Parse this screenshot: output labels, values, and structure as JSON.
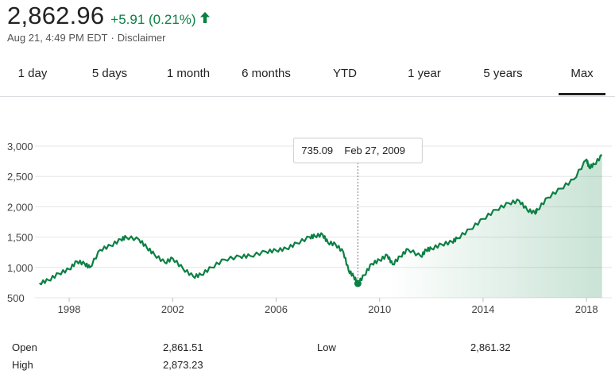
{
  "quote": {
    "price": "2,862.96",
    "change": "+5.91 (0.21%)",
    "arrow_icon": "arrow-up-icon",
    "timestamp": "Aug 21, 4:49 PM EDT",
    "separator": "·",
    "disclaimer": "Disclaimer",
    "accent_color": "#0b8043"
  },
  "tabs": [
    {
      "label": "1 day"
    },
    {
      "label": "5 days"
    },
    {
      "label": "1 month"
    },
    {
      "label": "6 months"
    },
    {
      "label": "YTD"
    },
    {
      "label": "1 year"
    },
    {
      "label": "5 years"
    },
    {
      "label": "Max",
      "active": true
    }
  ],
  "chart_data": {
    "type": "area",
    "x_ticks": [
      "1998",
      "2002",
      "2006",
      "2010",
      "2014",
      "2018"
    ],
    "y_ticks": [
      "3,000",
      "2,500",
      "2,000",
      "1,500",
      "1,000",
      "500"
    ],
    "ylim": [
      500,
      3000
    ],
    "xlim": [
      1996.8,
      2018.67
    ],
    "line_color": "#0b8043",
    "series": [
      {
        "x": [
          1996.85,
          1997.2,
          1997.6,
          1998.0,
          1998.3,
          1998.6,
          1998.8,
          1999.2,
          1999.6,
          2000.0,
          2000.2,
          2000.7,
          2001.0,
          2001.3,
          2001.7,
          2002.0,
          2002.4,
          2002.8,
          2003.1,
          2003.5,
          2004.0,
          2004.6,
          2005.0,
          2005.6,
          2006.0,
          2006.4,
          2006.8,
          2007.3,
          2007.5,
          2007.8,
          2008.0,
          2008.3,
          2008.6,
          2008.8,
          2009.0,
          2009.16,
          2009.4,
          2009.7,
          2010.0,
          2010.3,
          2010.5,
          2010.8,
          2011.1,
          2011.6,
          2011.8,
          2012.0,
          2012.4,
          2012.8,
          2013.0,
          2013.5,
          2014.0,
          2014.5,
          2015.0,
          2015.4,
          2015.7,
          2016.0,
          2016.1,
          2016.5,
          2017.0,
          2017.5,
          2018.0,
          2018.1,
          2018.3,
          2018.6
        ],
        "values": [
          740,
          790,
          900,
          970,
          1100,
          1060,
          1000,
          1290,
          1360,
          1460,
          1500,
          1460,
          1330,
          1210,
          1080,
          1150,
          980,
          850,
          880,
          1000,
          1130,
          1180,
          1190,
          1260,
          1280,
          1310,
          1400,
          1500,
          1520,
          1540,
          1410,
          1380,
          1250,
          950,
          850,
          735,
          870,
          1060,
          1120,
          1200,
          1050,
          1180,
          1300,
          1180,
          1290,
          1310,
          1380,
          1420,
          1480,
          1630,
          1800,
          1950,
          2060,
          2100,
          1950,
          1900,
          1950,
          2150,
          2300,
          2450,
          2780,
          2650,
          2700,
          2850
        ]
      }
    ],
    "tooltip": {
      "value": "735.09",
      "date": "Feb 27, 2009",
      "x": 2009.16,
      "y": 735.09
    }
  },
  "stats": [
    {
      "label": "Open",
      "value": "2,861.51"
    },
    {
      "label": "High",
      "value": "2,873.23"
    },
    {
      "label": "Low",
      "value": "2,861.32"
    }
  ]
}
